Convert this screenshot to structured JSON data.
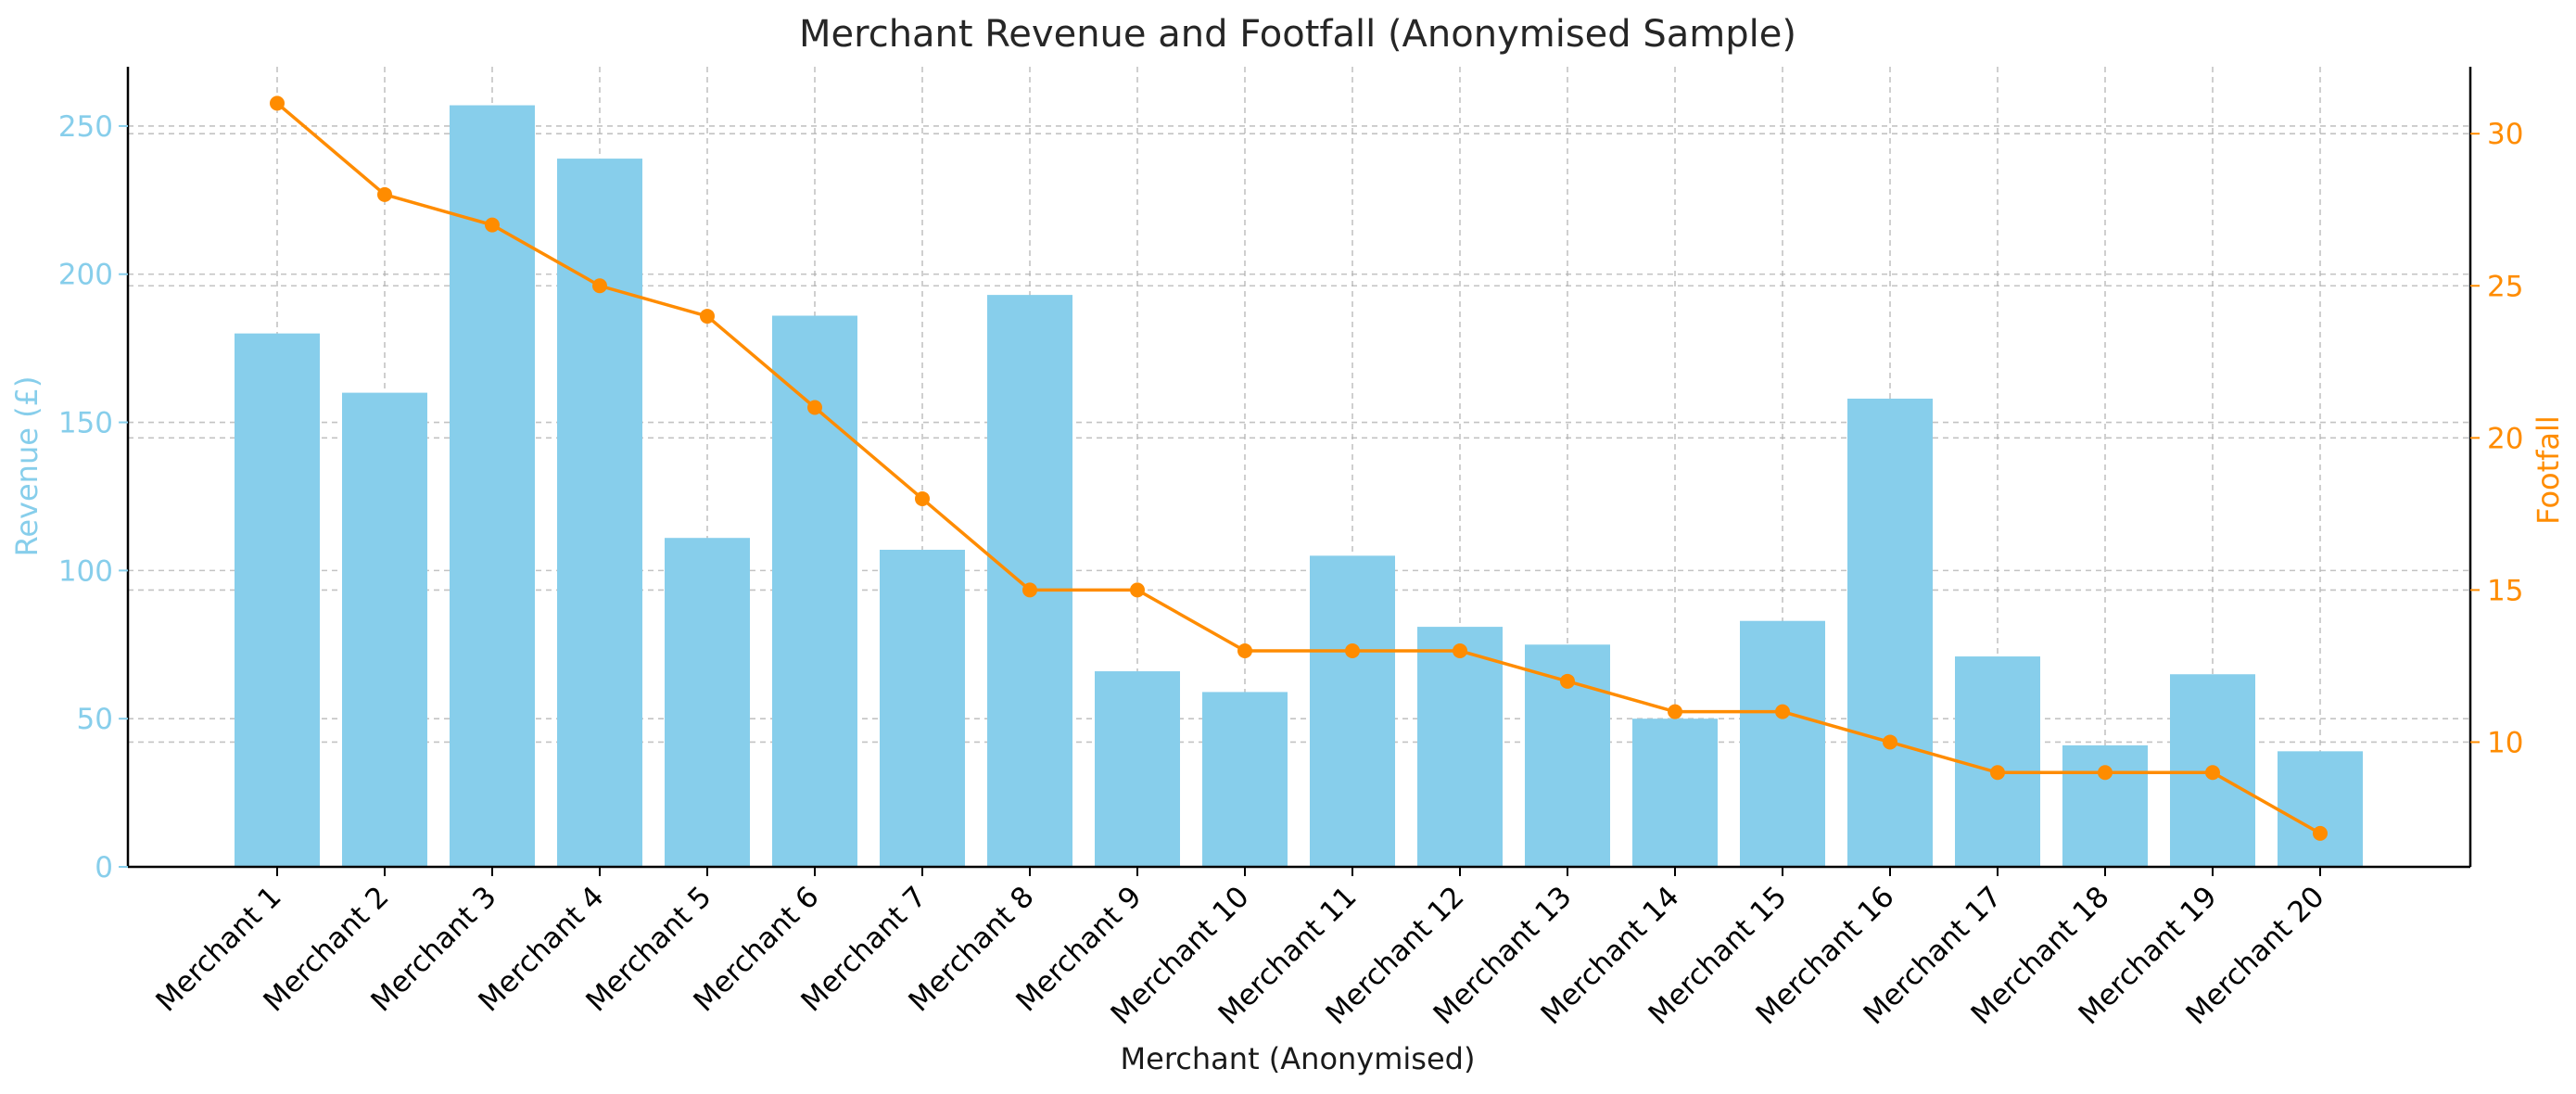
{
  "chart_data": {
    "type": "bar",
    "title": "Merchant Revenue and Footfall (Anonymised Sample)",
    "xlabel": "Merchant (Anonymised)",
    "ylabel": "Revenue (£)",
    "y2label": "Footfall",
    "categories": [
      "Merchant 1",
      "Merchant 2",
      "Merchant 3",
      "Merchant 4",
      "Merchant 5",
      "Merchant 6",
      "Merchant 7",
      "Merchant 8",
      "Merchant 9",
      "Merchant 10",
      "Merchant 11",
      "Merchant 12",
      "Merchant 13",
      "Merchant 14",
      "Merchant 15",
      "Merchant 16",
      "Merchant 17",
      "Merchant 18",
      "Merchant 19",
      "Merchant 20"
    ],
    "series": [
      {
        "type": "bar",
        "axis": "left",
        "values": [
          180,
          160,
          257,
          239,
          111,
          186,
          107,
          193,
          66,
          59,
          105,
          81,
          75,
          50,
          83,
          158,
          71,
          41,
          65,
          39
        ]
      },
      {
        "type": "line",
        "axis": "right",
        "values": [
          31,
          28,
          27,
          25,
          24,
          21,
          18,
          15,
          15,
          13,
          13,
          13,
          12,
          11,
          11,
          10,
          9,
          9,
          9,
          7
        ]
      }
    ],
    "ylim": [
      0,
      270
    ],
    "y2lim": [
      5.9,
      32.2
    ],
    "yticks": [
      0,
      50,
      100,
      150,
      200,
      250
    ],
    "y2ticks": [
      10,
      15,
      20,
      25,
      30
    ],
    "grid": true,
    "colors": {
      "bar": "#87ceeb",
      "line": "#ff8c00",
      "axis": "#000000",
      "title": "#262626"
    }
  }
}
